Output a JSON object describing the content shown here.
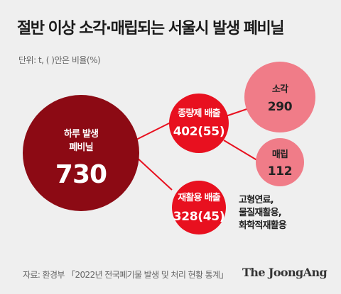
{
  "title": "절반 이상 소각·매립되는 서울시 발생 폐비닐",
  "unit": "단위: t, ( )안은 비율(%)",
  "nodes": {
    "total": {
      "label": "하루 발생\n폐비닐",
      "value": "730"
    },
    "general": {
      "label": "종량제 배출",
      "value": "402(55)"
    },
    "recycle": {
      "label": "재활용 배출",
      "value": "328(45)"
    },
    "incinerate": {
      "label": "소각",
      "value": "290"
    },
    "landfill": {
      "label": "매립",
      "value": "112"
    }
  },
  "recycle_note": "고형연료,\n물질재활용,\n화학적재활용",
  "source": "자료: 환경부 「2022년 전국폐기물 발생 및 처리 현황 통계」",
  "logo": "The JoongAng",
  "colors": {
    "dark_red": "#8c0a14",
    "red": "#e8101f",
    "pink": "#f07c88",
    "connector": "#e8101f"
  }
}
